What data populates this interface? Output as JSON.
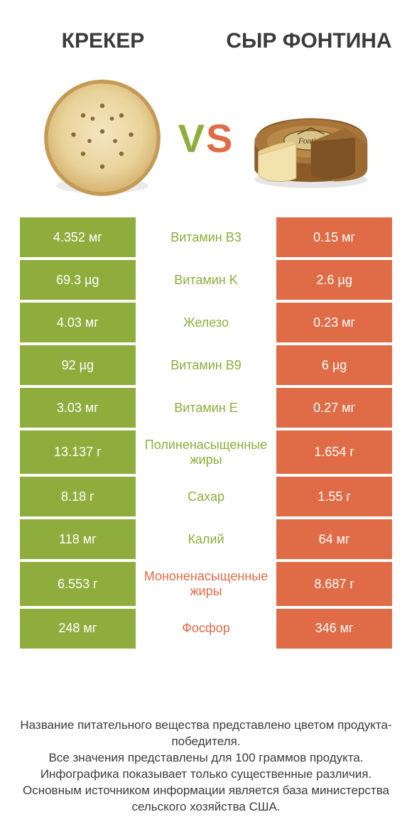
{
  "palette": {
    "left_color": "#8fad3d",
    "right_color": "#df6c46",
    "text": "#3b3b3b",
    "white": "#ffffff",
    "bg": "#ffffff"
  },
  "header": {
    "left_title": "КРЕКЕР",
    "right_title": "СЫР ФОНТИНА",
    "vs_v": "V",
    "vs_s": "S"
  },
  "images": {
    "left": {
      "name": "cracker",
      "base": "#e9d39b",
      "edge": "#d6b676",
      "holes": "#8a6a36"
    },
    "right": {
      "name": "fontina-cheese",
      "rind": "#8a5a28",
      "body": "#f4e6b0",
      "label": "#d9c48a",
      "label_text": "Fontina"
    }
  },
  "rows": [
    {
      "nutrient": "Витамин B3",
      "left": "4.352 мг",
      "right": "0.15 мг",
      "winner": "left"
    },
    {
      "nutrient": "Витамин K",
      "left": "69.3 µg",
      "right": "2.6 µg",
      "winner": "left"
    },
    {
      "nutrient": "Железо",
      "left": "4.03 мг",
      "right": "0.23 мг",
      "winner": "left"
    },
    {
      "nutrient": "Витамин B9",
      "left": "92 µg",
      "right": "6 µg",
      "winner": "left"
    },
    {
      "nutrient": "Витамин E",
      "left": "3.03 мг",
      "right": "0.27 мг",
      "winner": "left"
    },
    {
      "nutrient": "Полиненасыщенные жиры",
      "left": "13.137 г",
      "right": "1.654 г",
      "winner": "left"
    },
    {
      "nutrient": "Сахар",
      "left": "8.18 г",
      "right": "1.55 г",
      "winner": "left"
    },
    {
      "nutrient": "Калий",
      "left": "118 мг",
      "right": "64 мг",
      "winner": "left"
    },
    {
      "nutrient": "Мононенасыщенные жиры",
      "left": "6.553 г",
      "right": "8.687 г",
      "winner": "right"
    },
    {
      "nutrient": "Фосфор",
      "left": "248 мг",
      "right": "346 мг",
      "winner": "right"
    }
  ],
  "footer": {
    "lines": [
      "Название питательного вещества представлено цветом продукта-победителя.",
      "Все значения представлены для 100 граммов продукта.",
      "Инфографика показывает только существенные различия.",
      "Основным источником информации является база министерства сельского хозяйства США."
    ]
  }
}
